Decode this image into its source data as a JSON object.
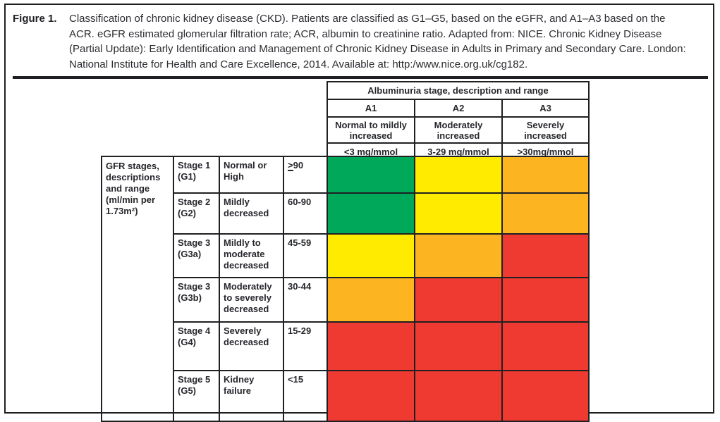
{
  "figure": {
    "label": "Figure 1.",
    "caption": "Classification of chronic kidney disease (CKD). Patients are classified as G1–G5, based on the eGFR, and A1–A3 based on the ACR. eGFR estimated glomerular filtration rate; ACR, albumin to creatinine ratio. Adapted from: NICE. Chronic Kidney Disease (Partial Update): Early Identification and Management of Chronic Kidney Disease in Adults in Primary and Secondary Care. London: National Institute for Health and Care Excellence, 2014. Available at: http:/www.nice.org.uk/cg182."
  },
  "albuminuria": {
    "title": "Albuminuria stage, description and range",
    "stages": [
      {
        "code": "A1",
        "description": "Normal to mildly increased",
        "range": "<3 mg/mmol"
      },
      {
        "code": "A2",
        "description": "Moderately increased",
        "range": "3-29 mg/mmol"
      },
      {
        "code": "A3",
        "description": "Severely increased",
        "range": "≥30mg/mmol"
      }
    ]
  },
  "gfr": {
    "header": "GFR stages, descriptions and range (ml/min per 1.73m²)",
    "rows": [
      {
        "stage": "Stage 1",
        "code": "(G1)",
        "description": "Normal or High",
        "range": "≥90",
        "colors": [
          "green",
          "yellow",
          "orange"
        ]
      },
      {
        "stage": "Stage 2",
        "code": "(G2)",
        "description": "Mildly decreased",
        "range": "60-90",
        "colors": [
          "green",
          "yellow",
          "orange"
        ]
      },
      {
        "stage": "Stage 3",
        "code": "(G3a)",
        "description": "Mildly to moderate decreased",
        "range": "45-59",
        "colors": [
          "yellow",
          "orange",
          "red"
        ]
      },
      {
        "stage": "Stage 3",
        "code": "(G3b)",
        "description": "Moderately to severely decreased",
        "range": "30-44",
        "colors": [
          "orange",
          "red",
          "red"
        ]
      },
      {
        "stage": "Stage 4",
        "code": "(G4)",
        "description": "Severely decreased",
        "range": "15-29",
        "colors": [
          "red",
          "red",
          "red"
        ]
      },
      {
        "stage": "Stage 5",
        "code": "(G5)",
        "description": "Kidney failure",
        "range": "<15",
        "colors": [
          "red",
          "red",
          "red"
        ]
      }
    ]
  },
  "colors": {
    "green": "#00A85A",
    "yellow": "#FFEB00",
    "orange": "#FCB521",
    "red": "#EF3A31",
    "ink": "#1f2023"
  }
}
